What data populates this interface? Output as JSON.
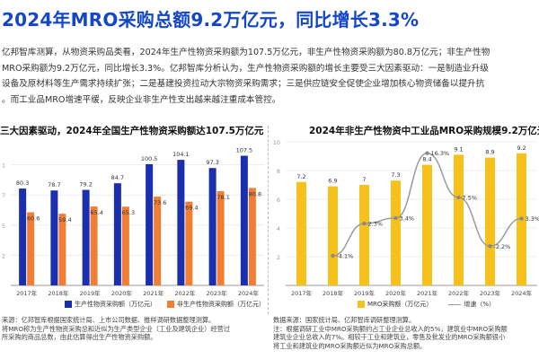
{
  "title": "2024年MRO采购总额9.2万亿元，同比增长3.3%",
  "paragraph": [
    "亿邦智库测算，从物资采购品类看，2024年生产性物资采购额为107.5万亿元，非生产性物资采购额为80.8万亿元；非生产性物",
    "MRO采购额为9.2万亿元，同比增长3.3%。亿邦智库分析认为，生产性物资采购额的增长主要受三大因素驱动：一是制造业升级",
    "设备及原材料等生产需求持续扩张；二是基建投资拉动大宗物资采购需求；三是供应链安全促使企业增加核心物资储备以提升抗",
    "。而工业品MRO增速平缓，反映企业非生产性支出越来越注重成本管控。"
  ],
  "left_chart": {
    "title": "三大因素驱动，2024年全国生产性物资采购额达107.5万亿元",
    "source": [
      "来源：亿邦智库根据国家统计局、上市公司数据、推样调研数据整理测算。",
      "将MRO称为生产性物资采购总和近似为生产类型企业（工业及建筑企业）经营过",
      "所采购的商品总数，由此估算得出生产性物资采购额。"
    ]
  },
  "right_chart": {
    "title": "2024年非生产性物资中工业品MRO采购规模9.2万亿元",
    "source": [
      "数据来源：国家统计局、亿邦智库调研整理测算。",
      "注：根据调研工业中MRO采购额约占工业企业总收入的5%，建筑业中MRO采购额",
      "建筑业企业总收入的7%。相较于工业和建筑业，零售及批发业的MRO采购额很小",
      "将工业和建筑业的MRO采购额近似为MRO采购总额。"
    ]
  },
  "colors": {
    "blue": "#1a2fb0",
    "orange": "#f07f35",
    "yellow": "#f5c11a",
    "gray_line": "#9a9a9a",
    "title_blue": "#1447c8"
  },
  "chart_data": [
    {
      "type": "bar",
      "title": "三大因素驱动，2024年全国生产性物资采购额达107.5万亿元",
      "categories": [
        "2017年",
        "2018年",
        "2019年",
        "2020年",
        "2021年",
        "2022年",
        "2023年",
        "2024年"
      ],
      "series": [
        {
          "name": "生产性物资采购额（万亿元）",
          "values": [
            80.3,
            78.7,
            79.2,
            84.7,
            100.5,
            104.1,
            97.3,
            107.5
          ]
        },
        {
          "name": "非生产性物资采购额（万亿元）",
          "values": [
            60.6,
            59.4,
            65.4,
            65.3,
            73.6,
            69.4,
            78.1,
            80.8
          ]
        }
      ],
      "ylim": [
        0,
        125
      ],
      "legend": "bottom"
    },
    {
      "type": "bar",
      "title": "2024年非生产性物资中工业品MRO采购规模9.2万亿元",
      "categories": [
        "2017年",
        "2018年",
        "2019年",
        "2020年",
        "2021年",
        "2022年",
        "2023年",
        "2024年"
      ],
      "series": [
        {
          "name": "MRO采购额（万亿元）",
          "values": [
            7.2,
            6.9,
            7.0,
            7.3,
            8.4,
            9.1,
            8.9,
            9.2
          ]
        },
        {
          "name": "增速（%）",
          "type": "line",
          "values": [
            null,
            -4.1,
            2.3,
            3.4,
            16.3,
            7.5,
            -2.2,
            3.3
          ],
          "labels": [
            null,
            "-4.1%",
            "2.3%",
            "3.4%",
            "16.3%",
            "7.5%",
            "-2.2%",
            "3.3%"
          ]
        }
      ],
      "ylim": [
        0,
        10.5
      ],
      "y2lim": [
        -10,
        20
      ],
      "legend": "bottom"
    }
  ]
}
